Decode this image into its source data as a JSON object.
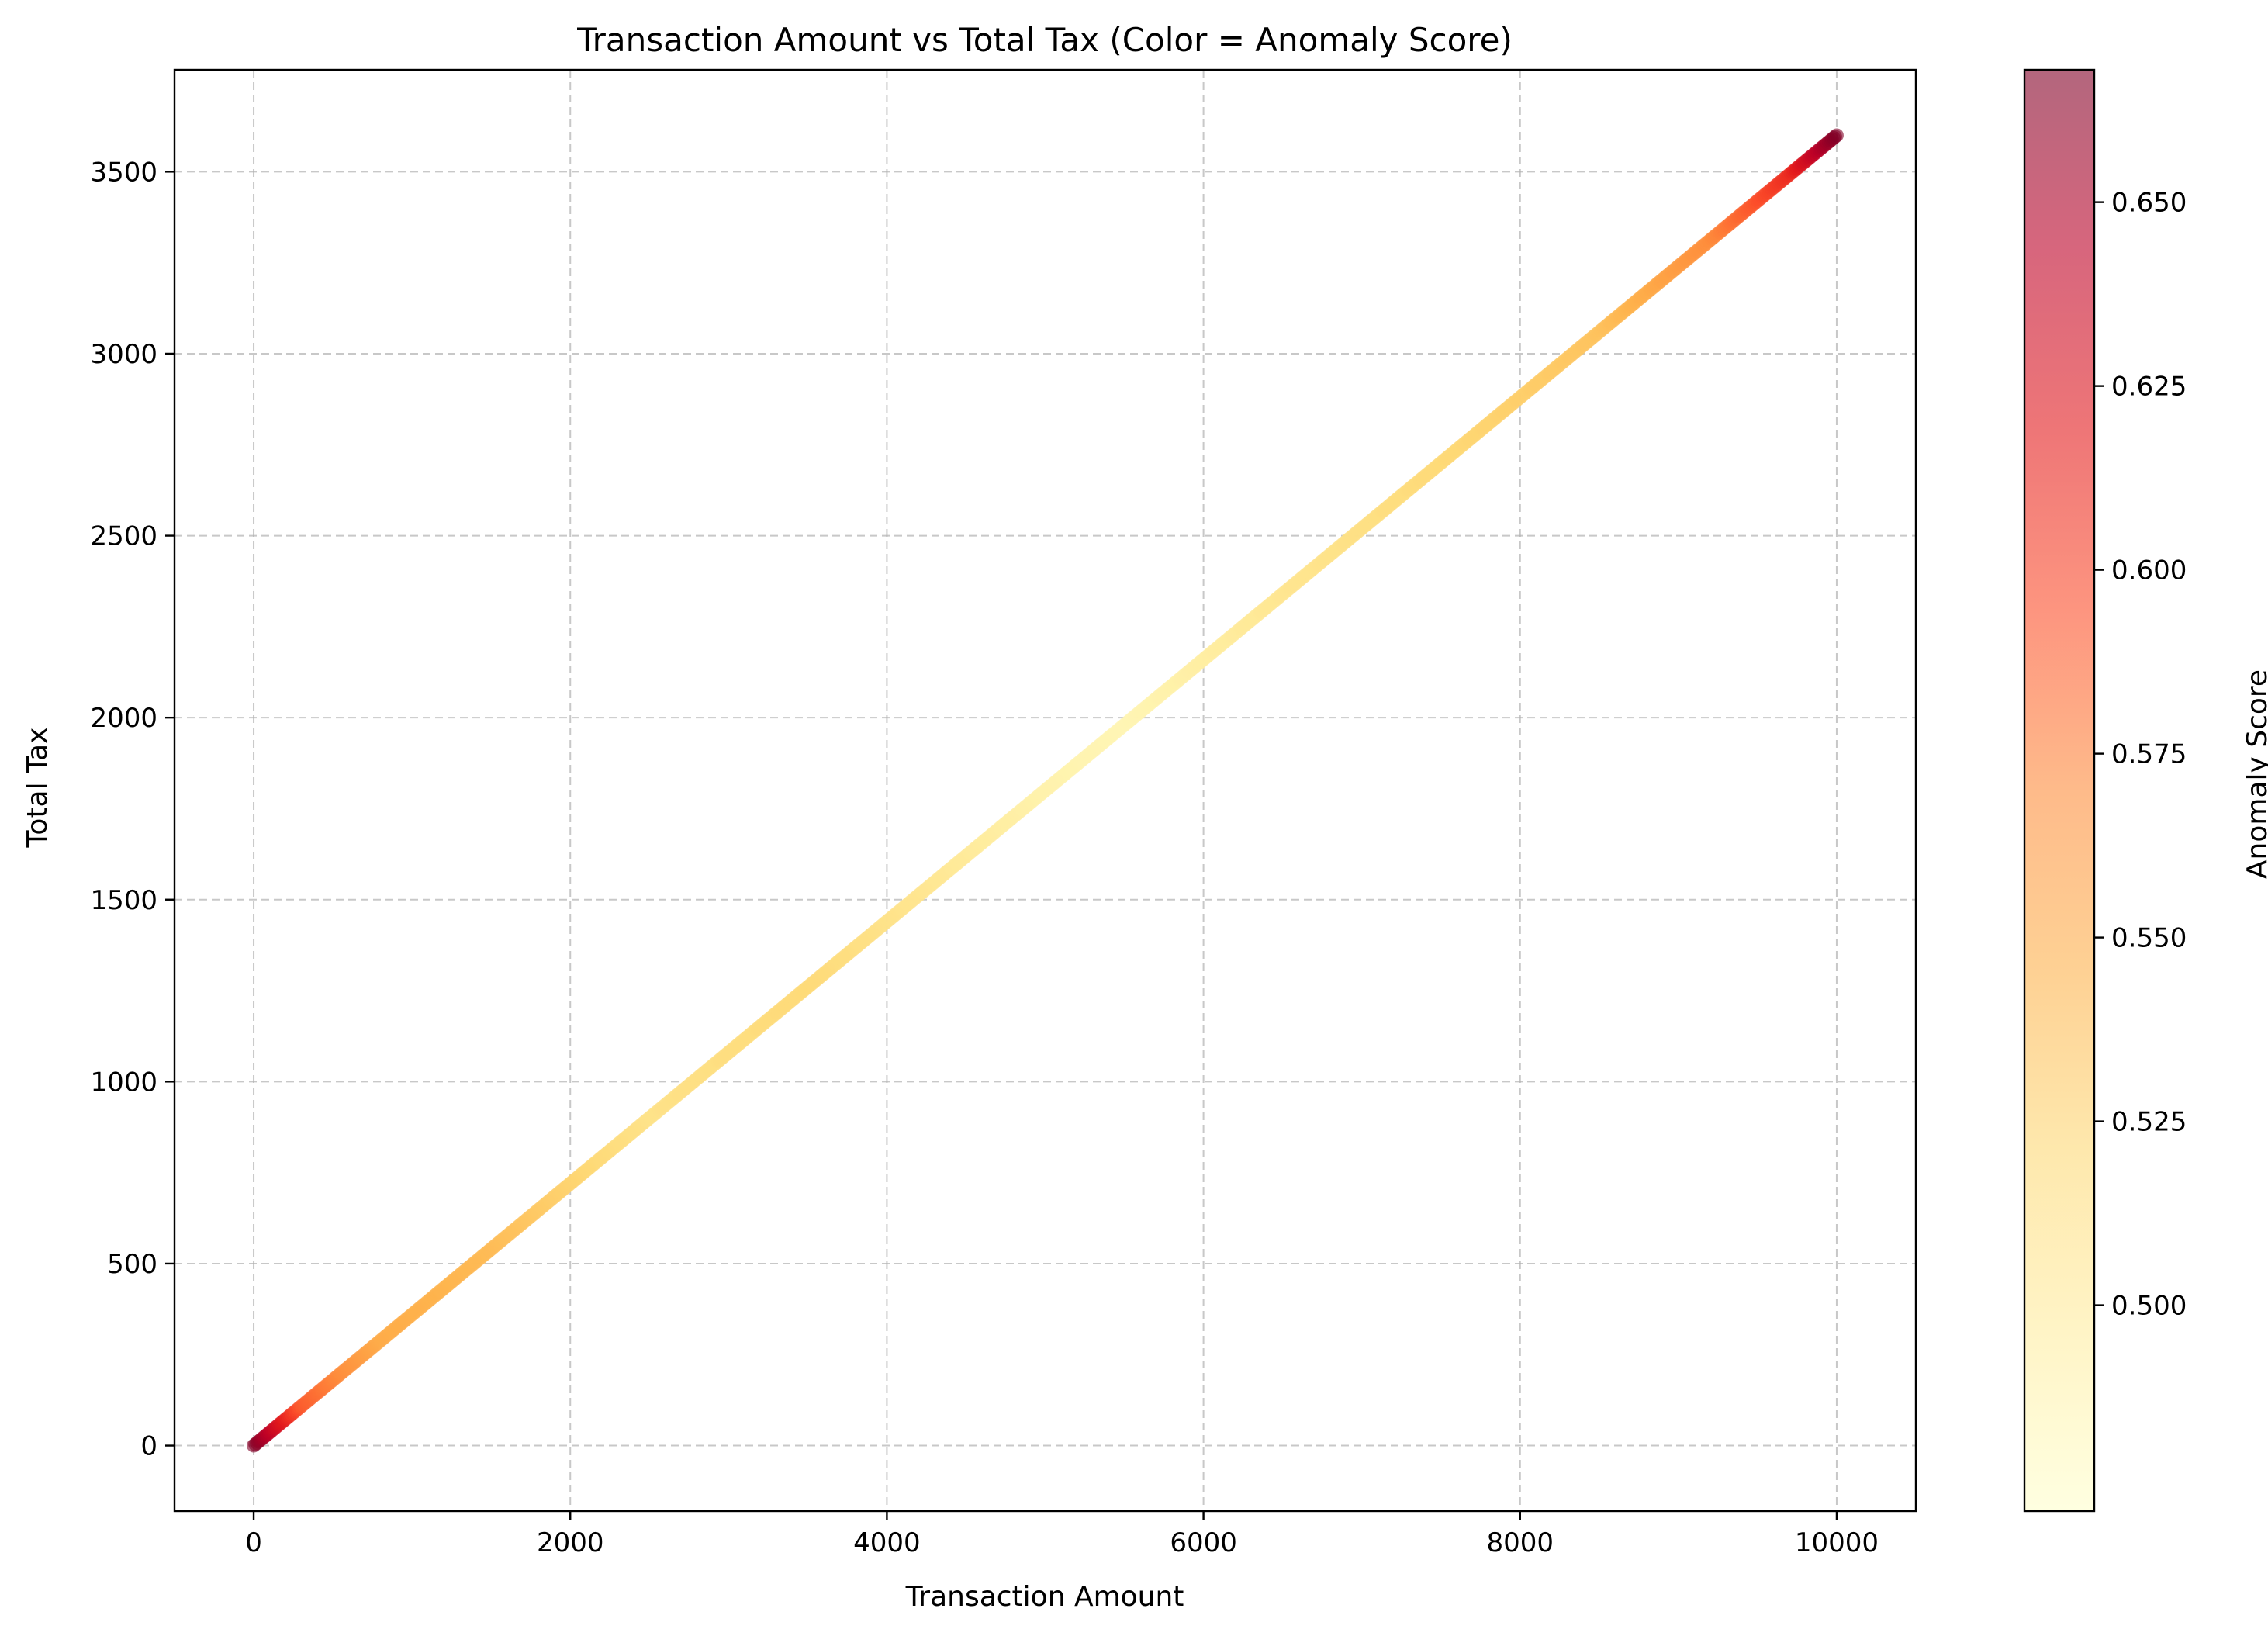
{
  "chart_data": {
    "type": "scatter",
    "title": "Transaction Amount vs Total Tax (Color = Anomaly Score)",
    "xlabel": "Transaction Amount",
    "ylabel": "Total Tax",
    "xlim": [
      -500,
      10500
    ],
    "ylim": [
      -180,
      3780
    ],
    "xticks": [
      0,
      2000,
      4000,
      6000,
      8000,
      10000
    ],
    "yticks": [
      0,
      500,
      1000,
      1500,
      2000,
      2500,
      3000,
      3500
    ],
    "grid": true,
    "colorbar": {
      "label": "Anomaly Score",
      "colormap": "YlOrRd",
      "range": [
        0.472,
        0.668
      ],
      "ticks": [
        "0.500",
        "0.525",
        "0.550",
        "0.575",
        "0.600",
        "0.625",
        "0.650"
      ],
      "colors": [
        "#ffffcc",
        "#ffeda0",
        "#fed976",
        "#feb24c",
        "#fd8d3c",
        "#fc4e2a",
        "#e31a1c",
        "#bd0026",
        "#800026"
      ]
    },
    "relationship": {
      "slope": 0.36,
      "intercept": 0
    },
    "x_range": [
      0,
      10000
    ],
    "anomaly_profile": {
      "x": [
        0,
        300,
        800,
        1500,
        2500,
        3500,
        5000,
        5500,
        6500,
        7500,
        8500,
        9200,
        9700,
        10000
      ],
      "score": [
        0.668,
        0.59,
        0.55,
        0.54,
        0.51,
        0.52,
        0.49,
        0.485,
        0.505,
        0.52,
        0.535,
        0.57,
        0.61,
        0.668
      ]
    }
  }
}
